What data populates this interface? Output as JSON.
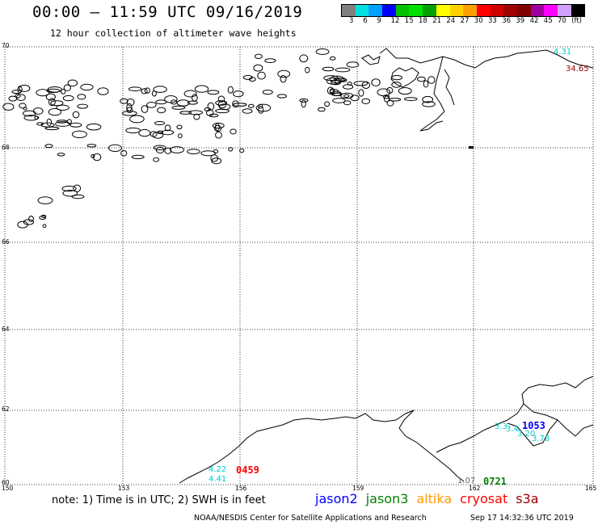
{
  "header": {
    "title": "00:00 – 11:59 UTC 09/16/2019",
    "subtitle": "12 hour collection of altimeter wave heights"
  },
  "colorbar": {
    "colors": [
      "#808080",
      "#00e0e0",
      "#00a0ff",
      "#0000ff",
      "#00c000",
      "#00e000",
      "#00a000",
      "#ffff00",
      "#ffd000",
      "#ffa000",
      "#ff0000",
      "#d00000",
      "#a00000",
      "#800000",
      "#a000a0",
      "#ff00ff",
      "#d0a0ff",
      "#000000"
    ],
    "labels": [
      "3",
      "6",
      "9",
      "12",
      "15",
      "18",
      "21",
      "24",
      "27",
      "30",
      "33",
      "36",
      "39",
      "42",
      "45",
      "70",
      "(ft)"
    ]
  },
  "axes": {
    "lat_labels": [
      "70",
      "68",
      "66",
      "64",
      "62",
      "60"
    ],
    "lon_labels": [
      "150",
      "153",
      "156",
      "159",
      "162",
      "165"
    ]
  },
  "swh_labels": {
    "northeast_1": "4.31",
    "northeast_2": "34.65",
    "south_1": "4.22",
    "south_2": "4.41",
    "southeast_1": "3.3",
    "southeast_2": "3.4",
    "southeast_3": "3.20",
    "southeast_4": "3.78",
    "bottom_1": "1.07"
  },
  "passes": {
    "p0459": "0459",
    "p1053": "1053",
    "p0721": "0721"
  },
  "footer": {
    "note": "note: 1) Time is in UTC; 2) SWH is in feet",
    "satellites": [
      {
        "name": "jason2",
        "color": "#0000ff"
      },
      {
        "name": "jason3",
        "color": "#008000"
      },
      {
        "name": "altika",
        "color": "#ff9900"
      },
      {
        "name": "cryosat",
        "color": "#ff0000"
      },
      {
        "name": "s3a",
        "color": "#990000"
      }
    ],
    "credit": "NOAA/NESDIS Center for Satellite Applications and Research",
    "timestamp": "Sep 17 14:32:36 UTC 2019"
  }
}
